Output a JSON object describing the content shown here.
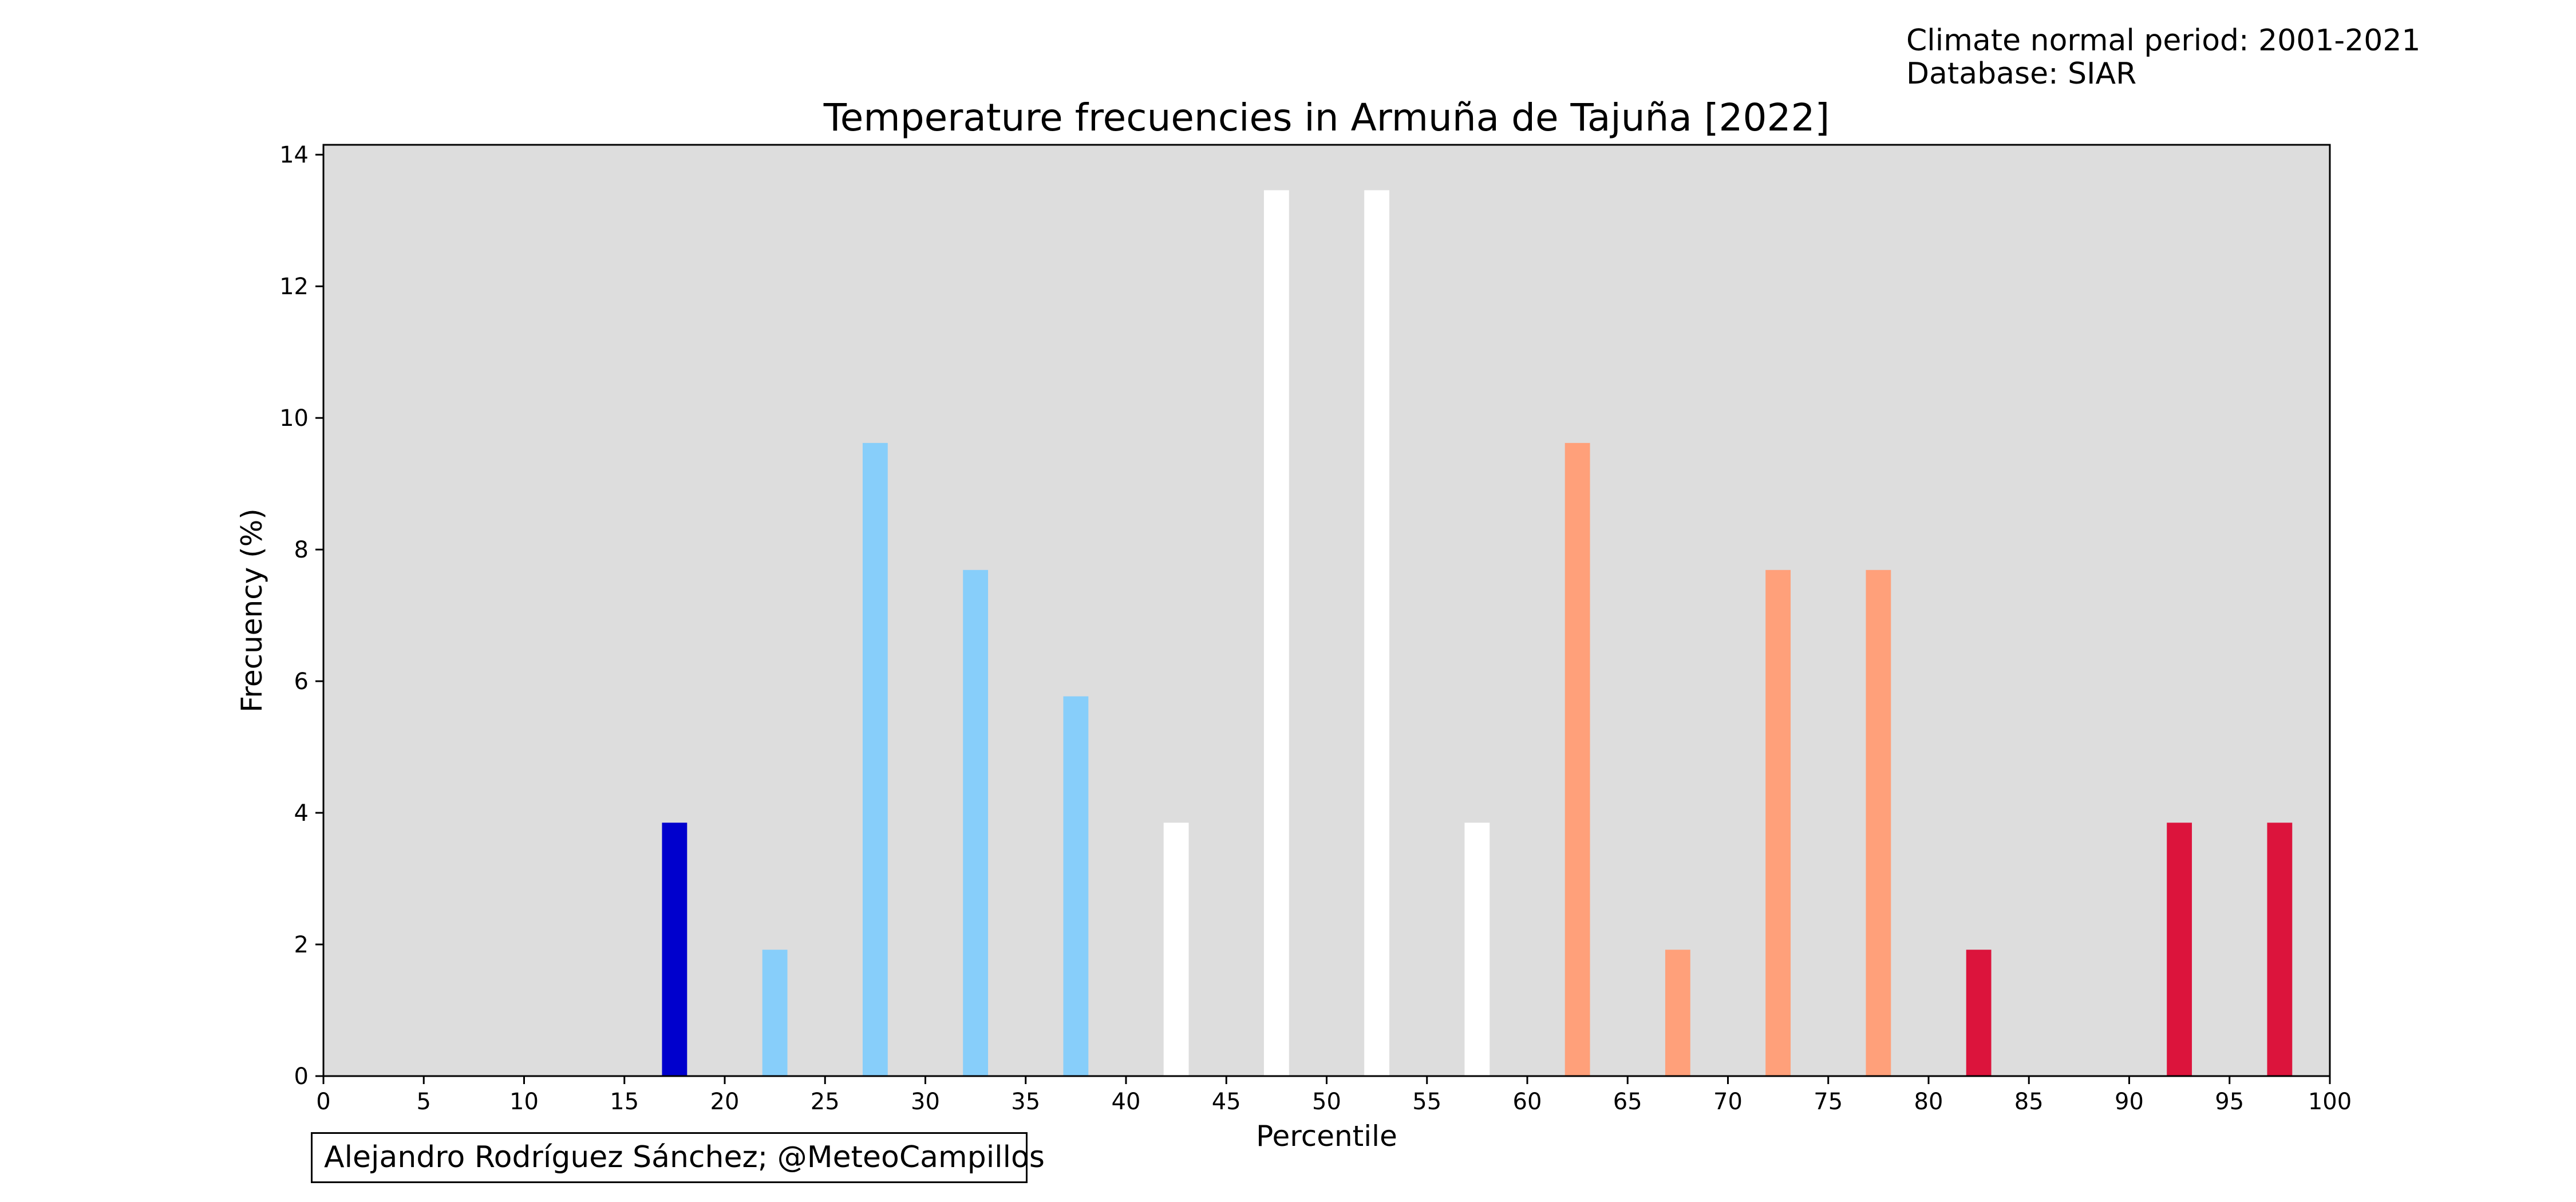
{
  "header": {
    "normal_period": "Climate normal period: 2001-2021",
    "database": "Database: SIAR"
  },
  "credit": "Alejandro Rodríguez Sánchez; @MeteoCampillos",
  "colors": {
    "background": "#dddddd",
    "very_cold": "#0000cd",
    "cold": "#87cefa",
    "normal": "#ffffff",
    "warm": "#ffa07a",
    "very_warm": "#dc143c"
  },
  "chart_data": {
    "type": "bar",
    "title": "Temperature frecuencies in Armuña de Tajuña [2022]",
    "xlabel": "Percentile",
    "ylabel": "Frecuency (%)",
    "xlim": [
      0,
      100
    ],
    "ylim": [
      0,
      14.15
    ],
    "xticks": [
      "0",
      "5",
      "10",
      "15",
      "20",
      "25",
      "30",
      "35",
      "40",
      "45",
      "50",
      "55",
      "60",
      "65",
      "70",
      "75",
      "80",
      "85",
      "90",
      "95",
      "100"
    ],
    "yticks": [
      "0",
      "2",
      "4",
      "6",
      "8",
      "10",
      "12",
      "14"
    ],
    "bar_width": 1.25,
    "grid": false,
    "x": [
      17.5,
      22.5,
      27.5,
      32.5,
      37.5,
      42.5,
      47.5,
      52.5,
      57.5,
      62.5,
      67.5,
      72.5,
      77.5,
      82.5,
      92.5,
      97.5
    ],
    "values": [
      3.85,
      1.92,
      9.62,
      7.69,
      5.77,
      3.85,
      13.46,
      13.46,
      3.85,
      9.62,
      1.92,
      7.69,
      7.69,
      1.92,
      3.85,
      3.85
    ],
    "bar_colors": [
      "#0000cd",
      "#87cefa",
      "#87cefa",
      "#87cefa",
      "#87cefa",
      "#ffffff",
      "#ffffff",
      "#ffffff",
      "#ffffff",
      "#ffa07a",
      "#ffa07a",
      "#ffa07a",
      "#ffa07a",
      "#dc143c",
      "#dc143c",
      "#dc143c"
    ]
  }
}
